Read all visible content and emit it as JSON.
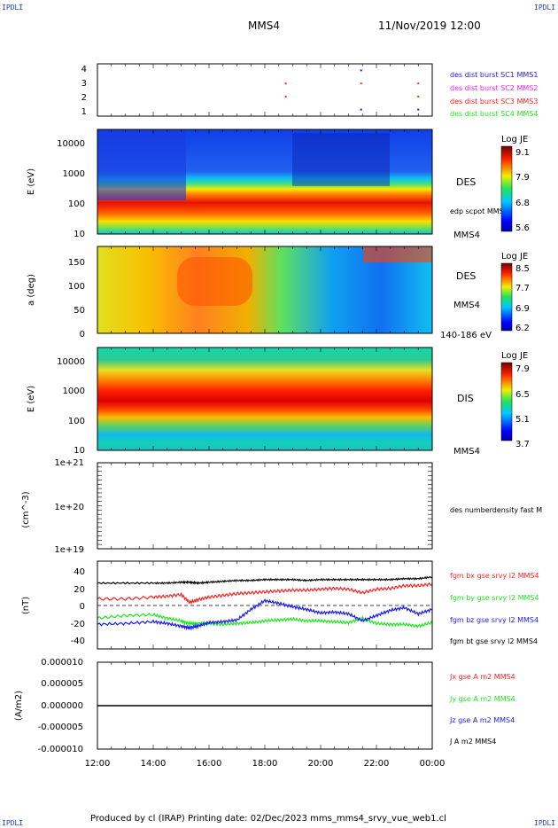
{
  "header": {
    "corner_label": "IPDLI",
    "title": "MMS4",
    "date": "11/Nov/2019 12:00"
  },
  "footer": {
    "text": "Produced by cl (IRAP)   Printing date: 02/Dec/2023   mms_mms4_srvy_vue_web1.cl"
  },
  "colors": {
    "black": "#000000",
    "red": "#ff2020",
    "green": "#1ee81e",
    "blue": "#1a1aff",
    "magenta": "#ff20ff",
    "label_blue": "#1a3acc"
  },
  "chart_data": [
    {
      "type": "scatter",
      "ylim": [
        0.5,
        4.5
      ],
      "yticks": [
        "1",
        "2",
        "3",
        "4"
      ],
      "legend": [
        "des dist burst SC1 MMS1",
        "des dist burst SC2 MMS2",
        "des dist burst SC3 MMS3",
        "des dist burst SC4 MMS4"
      ],
      "legend_colors": [
        "#1a1aff",
        "#ff20ff",
        "#ff2020",
        "#1ee81e"
      ],
      "points": [
        {
          "x": 18.75,
          "y": 2,
          "c": 2
        },
        {
          "x": 18.75,
          "y": 3,
          "c": 2
        },
        {
          "x": 21.45,
          "y": 3,
          "c": 2
        },
        {
          "x": 21.45,
          "y": 1,
          "c": 0
        },
        {
          "x": 23.5,
          "y": 1,
          "c": 0
        },
        {
          "x": 23.5,
          "y": 2,
          "c": 2
        },
        {
          "x": 23.5,
          "y": 3,
          "c": 2
        },
        {
          "x": 21.45,
          "y": 4,
          "c": 0
        }
      ]
    },
    {
      "type": "heatmap",
      "ylabel": "E (eV)",
      "yticks": [
        "10",
        "100",
        "1000",
        "10000"
      ],
      "colorbar_title": "Log JE",
      "colorbar_ticks": [
        "9.1",
        "7.9",
        "6.8",
        "5.6"
      ],
      "labels": [
        "DES",
        "edp scpot MMS4",
        "MMS4"
      ]
    },
    {
      "type": "heatmap",
      "ylabel": "a (deg)",
      "yticks": [
        "0",
        "50",
        "100",
        "150"
      ],
      "colorbar_title": "Log JE",
      "colorbar_ticks": [
        "8.5",
        "7.7",
        "6.9",
        "6.2"
      ],
      "labels": [
        "DES",
        "MMS4",
        "140-186 eV"
      ]
    },
    {
      "type": "heatmap",
      "ylabel": "E (eV)",
      "yticks": [
        "10",
        "100",
        "1000",
        "10000"
      ],
      "colorbar_title": "Log JE",
      "colorbar_ticks": [
        "7.9",
        "6.5",
        "5.1",
        "3.7"
      ],
      "labels": [
        "DIS",
        "MMS4"
      ]
    },
    {
      "type": "line",
      "ylabel": "(cm^-3)",
      "yticks": [
        "1e+19",
        "1e+20",
        "1e+21"
      ],
      "legend": [
        "des numberdensity fast M"
      ]
    },
    {
      "type": "line",
      "ylabel": "(nT)",
      "ylim": [
        -50,
        50
      ],
      "yticks": [
        "-40",
        "-20",
        "0",
        "20",
        "40"
      ],
      "legend": [
        "fgm bx gse srvy l2 MMS4",
        "fgm by gse srvy l2 MMS4",
        "fgm bz gse srvy l2 MMS4",
        "fgm bt gse srvy l2 MMS4"
      ],
      "legend_colors": [
        "#ff2020",
        "#1ee81e",
        "#1a1aff",
        "#000000"
      ],
      "x": [
        12,
        13,
        14,
        14.5,
        15,
        15.3,
        15.6,
        16,
        16.5,
        17,
        17.5,
        18,
        18.5,
        19,
        19.5,
        20,
        20.5,
        21,
        21.5,
        22,
        22.5,
        23,
        23.5,
        24
      ],
      "series": [
        {
          "values": [
            7,
            7,
            9,
            10,
            12,
            3,
            6,
            9,
            11,
            13,
            14,
            15,
            16,
            17,
            17,
            18,
            19,
            18,
            14,
            18,
            19,
            22,
            22,
            24
          ]
        },
        {
          "values": [
            -15,
            -12,
            -11,
            -15,
            -18,
            -21,
            -21,
            -21,
            -22,
            -21,
            -20,
            -18,
            -17,
            -16,
            -18,
            -18,
            -19,
            -20,
            -15,
            -21,
            -22,
            -22,
            -24,
            -20
          ]
        },
        {
          "values": [
            -22,
            -21,
            -19,
            -21,
            -24,
            -26,
            -24,
            -20,
            -19,
            -17,
            -5,
            5,
            2,
            -2,
            -5,
            -9,
            -8,
            -10,
            -18,
            -12,
            -6,
            -3,
            -10,
            -5
          ]
        },
        {
          "values": [
            25,
            25,
            25,
            25,
            26,
            26,
            25,
            26,
            27,
            28,
            28,
            29,
            29,
            29,
            28,
            29,
            29,
            29,
            29,
            29,
            29,
            30,
            30,
            32
          ]
        }
      ]
    },
    {
      "type": "line",
      "ylabel": "(A/m2)",
      "ylim": [
        -1e-05,
        1e-05
      ],
      "yticks": [
        "-0.000010",
        "-0.000005",
        "0.000000",
        "0.000005",
        "0.000010"
      ],
      "legend": [
        "Jx gse A m2 MMS4",
        "Jy gse A m2 MMS4",
        "Jz gse A m2 MMS4",
        "J A m2 MMS4"
      ],
      "legend_colors": [
        "#ff2020",
        "#1ee81e",
        "#1a1aff",
        "#000000"
      ],
      "series": [
        {
          "values": [
            0,
            0
          ]
        }
      ]
    },
    {
      "type": "axis",
      "xticks": [
        "12:00",
        "14:00",
        "16:00",
        "18:00",
        "20:00",
        "22:00",
        "00:00"
      ],
      "xlim": [
        12,
        24
      ]
    }
  ]
}
